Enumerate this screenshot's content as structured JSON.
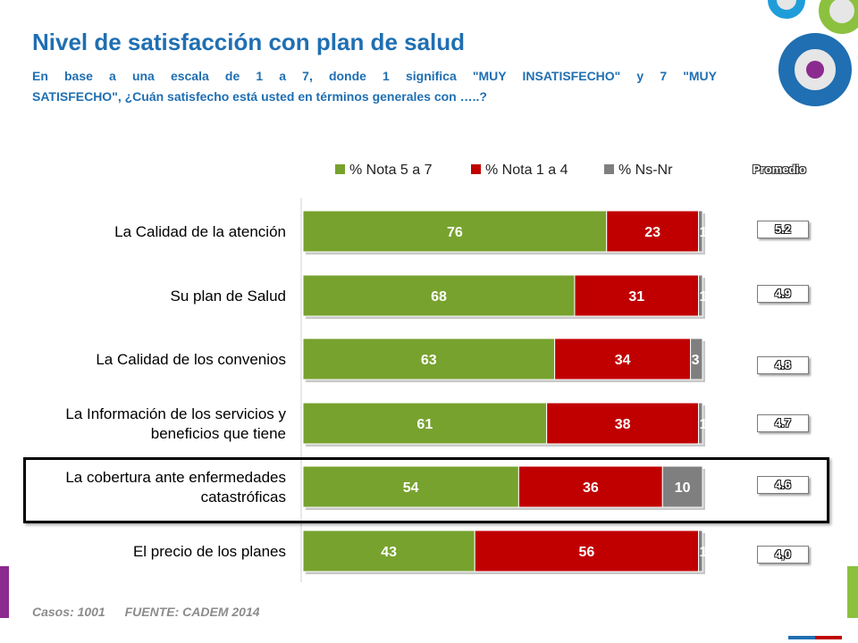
{
  "title": "Nivel de satisfacción con plan de salud",
  "subtitle_line1": "En base a una escala de 1 a 7, donde 1 significa \"MUY INSATISFECHO\" y 7 \"MUY",
  "subtitle_line2": "SATISFECHO\", ¿Cuán satisfecho está usted en términos generales con …..?",
  "footer": {
    "cases": "Casos: 1001",
    "source": "FUENTE: CADEM 2014"
  },
  "averages_header": "Promedio",
  "chart_data": {
    "type": "bar",
    "orientation": "horizontal",
    "stacked": true,
    "categories": [
      [
        "La Calidad de la atención"
      ],
      [
        "Su plan de Salud"
      ],
      [
        "La Calidad de los convenios"
      ],
      [
        "La Información de los servicios y",
        "beneficios que tiene"
      ],
      [
        "La cobertura ante enfermedades",
        "catastróficas"
      ],
      [
        "El precio de los planes"
      ]
    ],
    "series": [
      {
        "name": "% Nota 5 a 7",
        "color": "#77a22e",
        "values": [
          76,
          68,
          63,
          61,
          54,
          43
        ],
        "value_labels": [
          "76",
          "68",
          "63",
          "61",
          "54",
          "43"
        ]
      },
      {
        "name": "% Nota 1 a 4",
        "color": "#c00000",
        "values": [
          23,
          31,
          34,
          38,
          36,
          56
        ],
        "value_labels": [
          "23",
          "31",
          "34",
          "38",
          "36",
          "56"
        ]
      },
      {
        "name": "% Ns-Nr",
        "color": "#7f7f7f",
        "values": [
          1,
          1,
          3,
          1,
          10,
          1
        ],
        "value_labels": [
          "1",
          "1",
          "3",
          "1",
          "10",
          "1"
        ]
      }
    ],
    "xlim": [
      0,
      100
    ],
    "legend_position": "top",
    "highlighted_category_index": 4,
    "averages": [
      "5.2",
      "4.9",
      "4.8",
      "4.7",
      "4.6",
      "4,0"
    ]
  }
}
